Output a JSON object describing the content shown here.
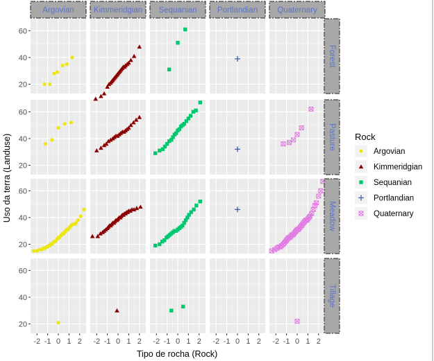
{
  "chart_data": {
    "type": "scatter",
    "xlabel": "Tipo de rocha (Rock)",
    "ylabel": "Uso da terra (Landuse)",
    "facet_columns": [
      "Argovian",
      "Kimmeridgian",
      "Sequanian",
      "Portlandian",
      "Quaternary"
    ],
    "facet_rows": [
      "Forest",
      "Pasture",
      "Meadow",
      "Tillage"
    ],
    "x_ticks": [
      "-2",
      "-1",
      "0",
      "1",
      "2"
    ],
    "y_ticks": [
      "20",
      "40",
      "60"
    ],
    "xlim": [
      -2.6,
      2.6
    ],
    "ylim": [
      13,
      69
    ],
    "grid": true,
    "legend": {
      "title": "Rock",
      "placement": "right",
      "entries": [
        "Argovian",
        "Kimmeridgian",
        "Sequanian",
        "Portlandian",
        "Quaternary"
      ]
    },
    "series": [
      {
        "name": "Argovian",
        "color": "#EDE613",
        "marker": "circle",
        "panels": [
          {
            "row": "Forest",
            "x": [
              -1.3,
              -0.8,
              -0.4,
              -0.1,
              0.4,
              0.8,
              1.3
            ],
            "y": [
              20,
              20,
              28,
              29,
              34,
              35,
              40
            ]
          },
          {
            "row": "Pasture",
            "x": [
              -1.2,
              -0.6,
              0.0,
              0.6,
              1.2
            ],
            "y": [
              36,
              39,
              48,
              51,
              52
            ]
          },
          {
            "row": "Meadow",
            "x": [
              -2.3,
              -2.0,
              -1.75,
              -1.55,
              -1.4,
              -1.25,
              -1.1,
              -1.0,
              -0.9,
              -0.8,
              -0.7,
              -0.6,
              -0.5,
              -0.4,
              -0.3,
              -0.2,
              -0.1,
              0.0,
              0.1,
              0.2,
              0.3,
              0.4,
              0.5,
              0.6,
              0.7,
              0.8,
              0.9,
              1.0,
              1.1,
              1.2,
              1.35,
              1.5,
              1.65,
              1.85,
              2.1,
              2.4
            ],
            "y": [
              15,
              15,
              16,
              16,
              17,
              17,
              18,
              18,
              19,
              19,
              20,
              20,
              21,
              22,
              22,
              23,
              24,
              25,
              25,
              26,
              27,
              28,
              28,
              29,
              30,
              31,
              31,
              32,
              33,
              34,
              35,
              35,
              36,
              38,
              41,
              46
            ]
          },
          {
            "row": "Tillage",
            "x": [
              0.0
            ],
            "y": [
              21
            ]
          }
        ]
      },
      {
        "name": "Kimmeridgian",
        "color": "#8B0000",
        "marker": "triangle",
        "panels": [
          {
            "row": "Forest",
            "x": [
              -2.1,
              -1.6,
              -1.3,
              -1.0,
              -0.85,
              -0.7,
              -0.6,
              -0.5,
              -0.4,
              -0.3,
              -0.2,
              -0.1,
              0.0,
              0.1,
              0.2,
              0.3,
              0.4,
              0.5,
              0.6,
              0.7,
              0.85,
              1.0,
              1.2,
              1.5,
              2.0
            ],
            "y": [
              9,
              11,
              13,
              18,
              20,
              21,
              22,
              23,
              24,
              25,
              26,
              27,
              28,
              29,
              30,
              31,
              32,
              33,
              33,
              34,
              35,
              36,
              38,
              41,
              48
            ]
          },
          {
            "row": "Pasture",
            "x": [
              -2.0,
              -1.6,
              -1.3,
              -1.1,
              -0.9,
              -0.7,
              -0.5,
              -0.35,
              -0.2,
              -0.05,
              0.1,
              0.25,
              0.4,
              0.55,
              0.7,
              0.85,
              1.0,
              1.2,
              1.45,
              1.7,
              2.0
            ],
            "y": [
              31,
              33,
              35,
              36,
              38,
              39,
              40,
              41,
              42,
              42,
              43,
              44,
              45,
              45,
              46,
              47,
              48,
              50,
              52,
              54,
              56
            ]
          },
          {
            "row": "Meadow",
            "x": [
              -2.4,
              -1.9,
              -1.65,
              -1.45,
              -1.3,
              -1.15,
              -1.0,
              -0.9,
              -0.8,
              -0.7,
              -0.6,
              -0.5,
              -0.4,
              -0.3,
              -0.2,
              -0.1,
              0.0,
              0.1,
              0.2,
              0.3,
              0.4,
              0.5,
              0.6,
              0.7,
              0.8,
              0.9,
              1.0,
              1.15,
              1.3,
              1.5,
              1.75,
              2.1
            ],
            "y": [
              26,
              26,
              28,
              29,
              30,
              31,
              32,
              33,
              34,
              34,
              35,
              36,
              36,
              37,
              38,
              38,
              39,
              40,
              40,
              41,
              42,
              42,
              43,
              43,
              44,
              44,
              45,
              45,
              46,
              46,
              47,
              48
            ]
          },
          {
            "row": "Tillage",
            "x": [
              -0.1
            ],
            "y": [
              30
            ]
          }
        ]
      },
      {
        "name": "Sequanian",
        "color": "#00C86E",
        "marker": "square",
        "panels": [
          {
            "row": "Forest",
            "x": [
              -0.8,
              0.0,
              0.7
            ],
            "y": [
              31,
              51,
              61
            ]
          },
          {
            "row": "Pasture",
            "x": [
              -2.1,
              -1.7,
              -1.4,
              -1.2,
              -1.0,
              -0.8,
              -0.6,
              -0.45,
              -0.3,
              -0.15,
              0.0,
              0.15,
              0.3,
              0.45,
              0.6,
              0.8,
              1.0,
              1.2,
              1.45,
              1.7,
              2.1
            ],
            "y": [
              29,
              31,
              32,
              34,
              36,
              38,
              39,
              41,
              43,
              44,
              46,
              47,
              49,
              50,
              51,
              53,
              55,
              57,
              60,
              61,
              67
            ]
          },
          {
            "row": "Meadow",
            "x": [
              -2.1,
              -1.7,
              -1.45,
              -1.25,
              -1.05,
              -0.9,
              -0.75,
              -0.6,
              -0.45,
              -0.3,
              -0.15,
              0.0,
              0.15,
              0.3,
              0.45,
              0.6,
              0.75,
              0.9,
              1.05,
              1.25,
              1.5,
              1.75,
              2.1
            ],
            "y": [
              19,
              20,
              22,
              23,
              25,
              26,
              27,
              28,
              29,
              30,
              30,
              31,
              32,
              33,
              34,
              36,
              38,
              40,
              42,
              44,
              46,
              49,
              52
            ]
          },
          {
            "row": "Tillage",
            "x": [
              -0.6,
              0.5
            ],
            "y": [
              30,
              33
            ]
          }
        ]
      },
      {
        "name": "Portlandian",
        "color": "#3A5FA8",
        "marker": "plus",
        "panels": [
          {
            "row": "Forest",
            "x": [
              0.0
            ],
            "y": [
              39
            ]
          },
          {
            "row": "Pasture",
            "x": [
              0.0
            ],
            "y": [
              32
            ]
          },
          {
            "row": "Meadow",
            "x": [
              0.0
            ],
            "y": [
              46
            ]
          }
        ]
      },
      {
        "name": "Quaternary",
        "color": "#E07AE0",
        "marker": "square-cross",
        "panels": [
          {
            "row": "Pasture",
            "x": [
              -1.3,
              -0.75,
              -0.35,
              0.0,
              0.4,
              1.3
            ],
            "y": [
              36,
              37,
              39,
              43,
              48,
              62
            ]
          },
          {
            "row": "Meadow",
            "x": [
              -2.4,
              -2.1,
              -1.9,
              -1.75,
              -1.6,
              -1.45,
              -1.3,
              -1.2,
              -1.1,
              -1.0,
              -0.9,
              -0.8,
              -0.7,
              -0.6,
              -0.5,
              -0.4,
              -0.3,
              -0.2,
              -0.1,
              0.0,
              0.1,
              0.2,
              0.3,
              0.4,
              0.5,
              0.6,
              0.7,
              0.8,
              0.9,
              1.0,
              1.1,
              1.2,
              1.35,
              1.5,
              1.65,
              1.8,
              2.0,
              2.2,
              2.4
            ],
            "y": [
              15,
              16,
              17,
              18,
              18,
              19,
              20,
              21,
              22,
              23,
              24,
              25,
              25,
              26,
              27,
              27,
              28,
              29,
              30,
              31,
              31,
              32,
              33,
              34,
              35,
              36,
              37,
              38,
              38,
              39,
              40,
              41,
              43,
              46,
              49,
              51,
              56,
              60,
              67
            ]
          },
          {
            "row": "Tillage",
            "x": [
              0.0
            ],
            "y": [
              22
            ]
          }
        ]
      }
    ]
  }
}
